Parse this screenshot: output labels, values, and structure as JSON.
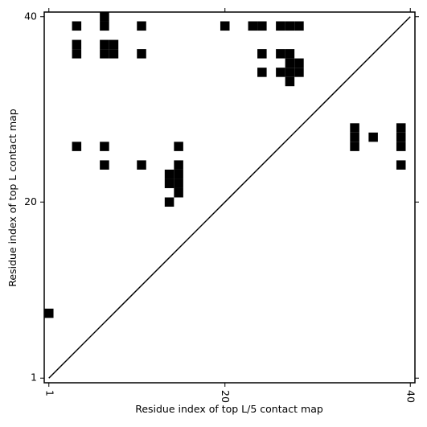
{
  "chart_data": {
    "type": "scatter",
    "marker": "square",
    "color": "#000000",
    "x_label": "Residue index of top L/5 contact map",
    "y_label": "Residue index of top L contact map",
    "x": [
      7,
      4,
      7,
      11,
      20,
      23,
      24,
      26,
      27,
      28,
      4,
      7,
      8,
      4,
      7,
      8,
      11,
      24,
      26,
      27,
      27,
      28,
      24,
      26,
      27,
      28,
      27,
      4,
      7,
      15,
      34,
      34,
      34,
      36,
      39,
      39,
      39,
      7,
      11,
      15,
      39,
      14,
      15,
      14,
      15,
      15,
      14,
      1
    ],
    "values": [
      40,
      39,
      39,
      39,
      39,
      39,
      39,
      39,
      39,
      39,
      37,
      37,
      37,
      36,
      36,
      36,
      36,
      36,
      36,
      36,
      35,
      35,
      34,
      34,
      34,
      34,
      33,
      26,
      26,
      26,
      26,
      27,
      28,
      27,
      26,
      27,
      28,
      24,
      24,
      24,
      24,
      23,
      23,
      22,
      22,
      21,
      20,
      8
    ],
    "xlim": [
      0.5,
      40.5
    ],
    "ylim": [
      0.5,
      40.5
    ],
    "xticks": [
      1,
      20,
      40
    ],
    "yticks": [
      1,
      20,
      40
    ],
    "diagonal": true
  }
}
